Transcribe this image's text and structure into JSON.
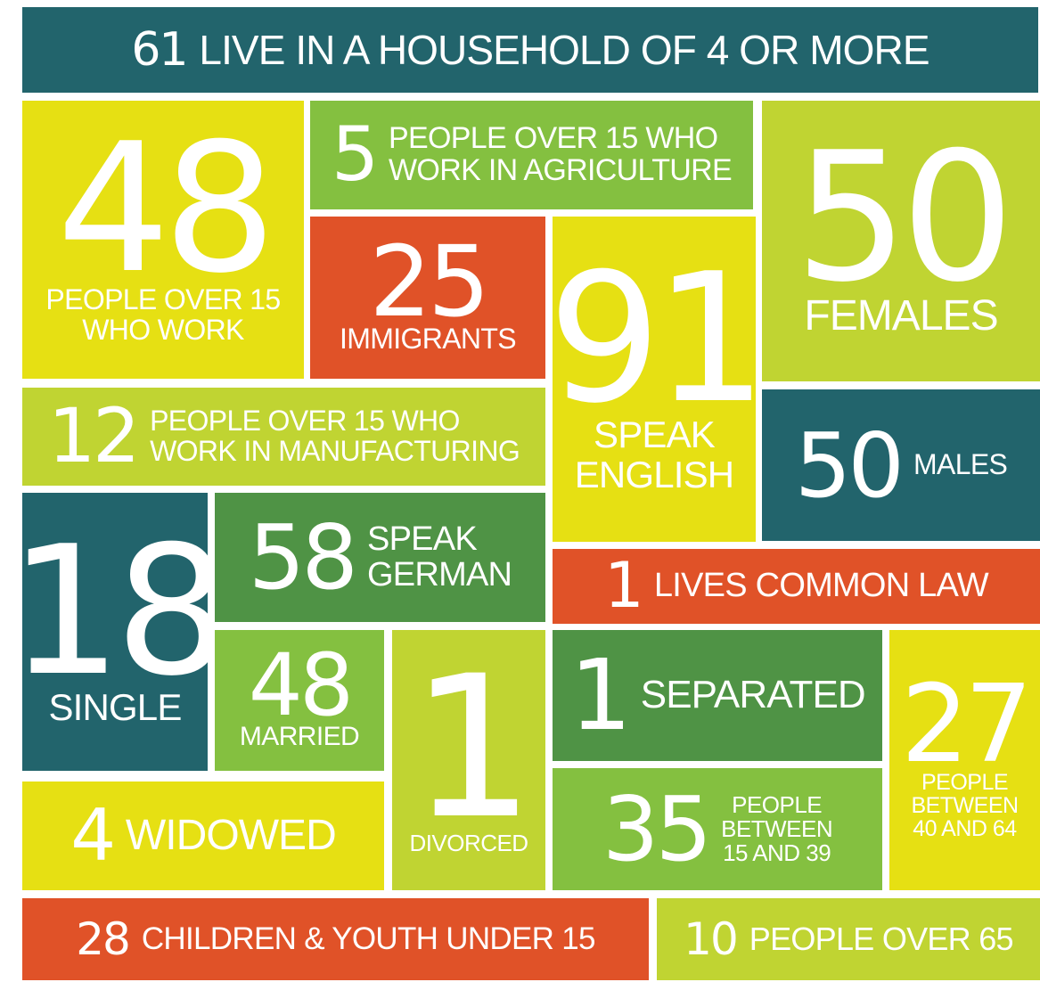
{
  "tiles": [
    {
      "number": 61,
      "label": [
        "LIVE IN A HOUSEHOLD OF 4 OR MORE"
      ]
    },
    {
      "number": 48,
      "label": [
        "PEOPLE OVER 15",
        "WHO WORK"
      ]
    },
    {
      "number": 5,
      "label": [
        "PEOPLE OVER 15 WHO",
        "WORK IN AGRICULTURE"
      ]
    },
    {
      "number": 50,
      "label": [
        "FEMALES"
      ]
    },
    {
      "number": 25,
      "label": [
        "IMMIGRANTS"
      ]
    },
    {
      "number": 91,
      "label": [
        "SPEAK",
        "ENGLISH"
      ]
    },
    {
      "number": 12,
      "label": [
        "PEOPLE OVER 15 WHO",
        "WORK IN MANUFACTURING"
      ]
    },
    {
      "number": 50,
      "label": [
        "MALES"
      ]
    },
    {
      "number": 18,
      "label": [
        "SINGLE"
      ]
    },
    {
      "number": 58,
      "label": [
        "SPEAK",
        "GERMAN"
      ]
    },
    {
      "number": 1,
      "label": [
        "LIVES COMMON LAW"
      ]
    },
    {
      "number": 48,
      "label": [
        "MARRIED"
      ]
    },
    {
      "number": 1,
      "label": [
        "DIVORCED"
      ]
    },
    {
      "number": 1,
      "label": [
        "SEPARATED"
      ]
    },
    {
      "number": 27,
      "label": [
        "PEOPLE",
        "BETWEEN",
        "40 AND 64"
      ]
    },
    {
      "number": 4,
      "label": [
        "WIDOWED"
      ]
    },
    {
      "number": 35,
      "label": [
        "PEOPLE",
        "BETWEEN",
        "15 AND 39"
      ]
    },
    {
      "number": 28,
      "label": [
        "CHILDREN & YOUTH UNDER 15"
      ]
    },
    {
      "number": 10,
      "label": [
        "PEOPLE OVER 65"
      ]
    }
  ]
}
